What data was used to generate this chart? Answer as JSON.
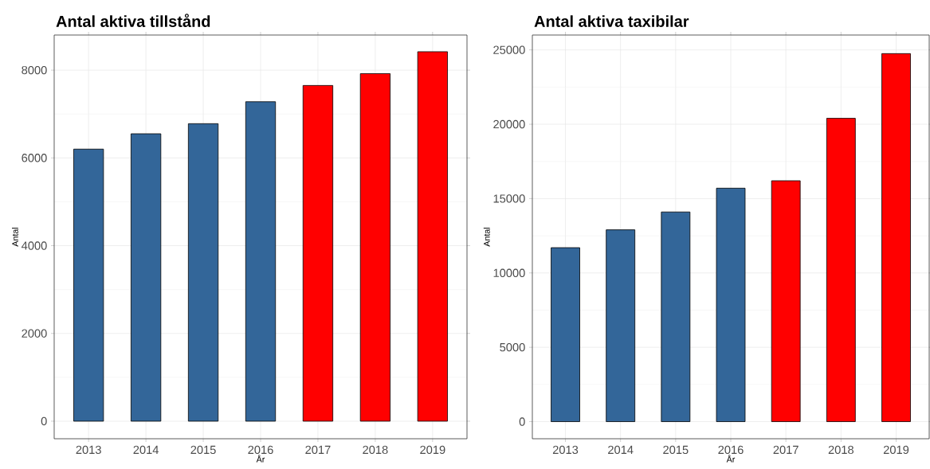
{
  "chart_data": [
    {
      "type": "bar",
      "title": "Antal aktiva tillstånd",
      "xlabel": "År",
      "ylabel": "Antal",
      "categories": [
        "2013",
        "2014",
        "2015",
        "2016",
        "2017",
        "2018",
        "2019"
      ],
      "values": [
        6200,
        6550,
        6780,
        7280,
        7650,
        7920,
        8420
      ],
      "colors": [
        "#336699",
        "#336699",
        "#336699",
        "#336699",
        "#ff0000",
        "#ff0000",
        "#ff0000"
      ],
      "ylim": [
        -400,
        8800
      ],
      "yticks": [
        0,
        2000,
        4000,
        6000,
        8000
      ],
      "grid": true
    },
    {
      "type": "bar",
      "title": "Antal aktiva taxibilar",
      "xlabel": "År",
      "ylabel": "Antal",
      "categories": [
        "2013",
        "2014",
        "2015",
        "2016",
        "2017",
        "2018",
        "2019"
      ],
      "values": [
        11700,
        12900,
        14100,
        15700,
        16200,
        20400,
        24750
      ],
      "colors": [
        "#336699",
        "#336699",
        "#336699",
        "#336699",
        "#ff0000",
        "#ff0000",
        "#ff0000"
      ],
      "ylim": [
        -1150,
        26000
      ],
      "yticks": [
        0,
        5000,
        10000,
        15000,
        20000,
        25000
      ],
      "grid": true
    }
  ]
}
